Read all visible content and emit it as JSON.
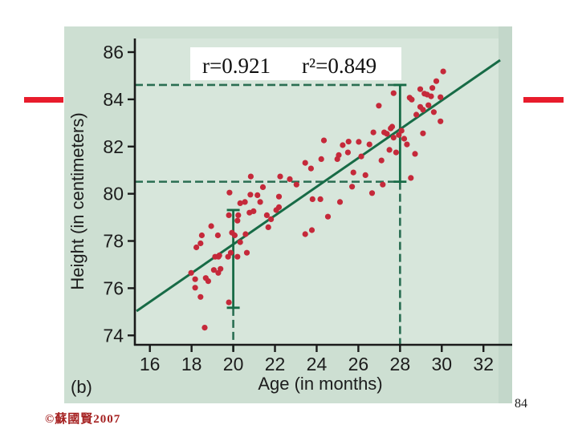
{
  "slide": {
    "page_number": "84",
    "copyright": "©蘇國賢2007"
  },
  "decorations": {
    "red_dash_color": "#e81c2c"
  },
  "chart_data": {
    "type": "scatter",
    "title": "",
    "xlabel": "Age (in months)",
    "ylabel": "Height (in centimeters)",
    "panel_label": "(b)",
    "annotation": {
      "r": "r=0.921",
      "r_squared": "r²=0.849"
    },
    "xlim": [
      15.3,
      33.1
    ],
    "ylim": [
      73.6,
      86.6
    ],
    "xticks": [
      16,
      18,
      20,
      22,
      24,
      26,
      28,
      30,
      32
    ],
    "yticks": [
      74,
      76,
      78,
      80,
      82,
      84,
      86
    ],
    "grid": false,
    "legend": "none",
    "regression_line": {
      "x1": 15.36,
      "y1": 75.03,
      "x2": 32.8,
      "y2": 85.66
    },
    "error_bars": [
      {
        "x": 20,
        "low": 75.17,
        "high": 79.31
      },
      {
        "x": 28,
        "low": 80.51,
        "high": 84.61
      }
    ],
    "dashed_guides": {
      "horizontal": [
        {
          "y": 84.61,
          "to_x": 28
        },
        {
          "y": 80.51,
          "to_x": 28
        }
      ],
      "vertical": [
        {
          "x": 20,
          "to_y": 75.17
        },
        {
          "x": 28,
          "to_y": 80.51
        }
      ]
    },
    "colors": {
      "point": "#c5293a",
      "line": "#176b46",
      "dashes": "#2a6e52",
      "panel_bg": "#cddfd2",
      "plot_bg": "#d7e6db",
      "right_strip": "#c3d7ca",
      "axis": "#1a1a1a",
      "annotation_bg": "#ffffff",
      "annotation_text": "#111111"
    },
    "points": [
      [
        17.98,
        76.65
      ],
      [
        18.17,
        76.38
      ],
      [
        18.23,
        77.73
      ],
      [
        18.43,
        77.9
      ],
      [
        18.49,
        78.24
      ],
      [
        18.94,
        78.63
      ],
      [
        19.26,
        78.24
      ],
      [
        19.07,
        76.77
      ],
      [
        19.39,
        76.82
      ],
      [
        18.68,
        76.43
      ],
      [
        18.17,
        76.02
      ],
      [
        18.43,
        75.63
      ],
      [
        18.63,
        74.33
      ],
      [
        19.13,
        77.33
      ],
      [
        19.33,
        77.39
      ],
      [
        18.8,
        76.3
      ],
      [
        19.28,
        76.65
      ],
      [
        19.79,
        75.4
      ],
      [
        19.29,
        77.33
      ],
      [
        19.75,
        77.33
      ],
      [
        19.88,
        77.5
      ],
      [
        20.2,
        77.33
      ],
      [
        20.65,
        77.5
      ],
      [
        20.33,
        77.95
      ],
      [
        20.33,
        79.6
      ],
      [
        21.29,
        79.65
      ],
      [
        20.78,
        79.2
      ],
      [
        20.97,
        79.26
      ],
      [
        22.06,
        79.31
      ],
      [
        21.61,
        79.09
      ],
      [
        21.81,
        78.92
      ],
      [
        20.2,
        78.86
      ],
      [
        21.68,
        78.58
      ],
      [
        20.59,
        78.29
      ],
      [
        20.07,
        78.24
      ],
      [
        19.94,
        78.35
      ],
      [
        24.54,
        79.03
      ],
      [
        23.45,
        78.29
      ],
      [
        23.77,
        78.46
      ],
      [
        25.12,
        79.65
      ],
      [
        20.56,
        79.65
      ],
      [
        20.82,
        79.96
      ],
      [
        20.24,
        79.09
      ],
      [
        19.79,
        79.09
      ],
      [
        20.84,
        80.73
      ],
      [
        19.82,
        80.05
      ],
      [
        21.16,
        79.94
      ],
      [
        21.42,
        80.28
      ],
      [
        22.25,
        80.73
      ],
      [
        22.19,
        79.88
      ],
      [
        22.71,
        80.62
      ],
      [
        23.03,
        80.39
      ],
      [
        23.73,
        81.07
      ],
      [
        23.8,
        79.77
      ],
      [
        24.18,
        79.77
      ],
      [
        22.19,
        79.43
      ],
      [
        24.35,
        82.26
      ],
      [
        25.25,
        82.06
      ],
      [
        25.53,
        82.21
      ],
      [
        25.06,
        81.64
      ],
      [
        24.99,
        81.47
      ],
      [
        24.22,
        81.47
      ],
      [
        23.45,
        81.31
      ],
      [
        26.02,
        82.2
      ],
      [
        26.72,
        82.6
      ],
      [
        27.24,
        82.6
      ],
      [
        26.14,
        81.58
      ],
      [
        25.5,
        81.75
      ],
      [
        27.55,
        82.77
      ],
      [
        26.98,
        83.73
      ],
      [
        26.53,
        82.09
      ],
      [
        27.37,
        82.54
      ],
      [
        27.94,
        82.49
      ],
      [
        27.49,
        81.86
      ],
      [
        27.81,
        81.75
      ],
      [
        27.11,
        81.41
      ],
      [
        26.34,
        80.79
      ],
      [
        28.52,
        80.67
      ],
      [
        27.17,
        80.39
      ],
      [
        25.7,
        80.3
      ],
      [
        26.66,
        80.03
      ],
      [
        25.76,
        80.9
      ],
      [
        28.33,
        82.09
      ],
      [
        28.72,
        81.69
      ],
      [
        27.69,
        82.38
      ],
      [
        29.1,
        82.56
      ],
      [
        28.07,
        82.67
      ],
      [
        28.2,
        82.33
      ],
      [
        27.62,
        82.84
      ],
      [
        28.97,
        83.68
      ],
      [
        29.1,
        83.56
      ],
      [
        27.69,
        84.26
      ],
      [
        28.97,
        84.43
      ],
      [
        29.17,
        84.24
      ],
      [
        28.46,
        84.07
      ],
      [
        28.56,
        83.99
      ],
      [
        29.55,
        84.48
      ],
      [
        29.49,
        84.13
      ],
      [
        29.74,
        84.77
      ],
      [
        30.07,
        85.18
      ],
      [
        29.3,
        84.2
      ],
      [
        29.36,
        83.75
      ],
      [
        29.94,
        84.09
      ],
      [
        28.78,
        83.35
      ],
      [
        29.62,
        83.46
      ],
      [
        29.94,
        83.07
      ]
    ]
  }
}
